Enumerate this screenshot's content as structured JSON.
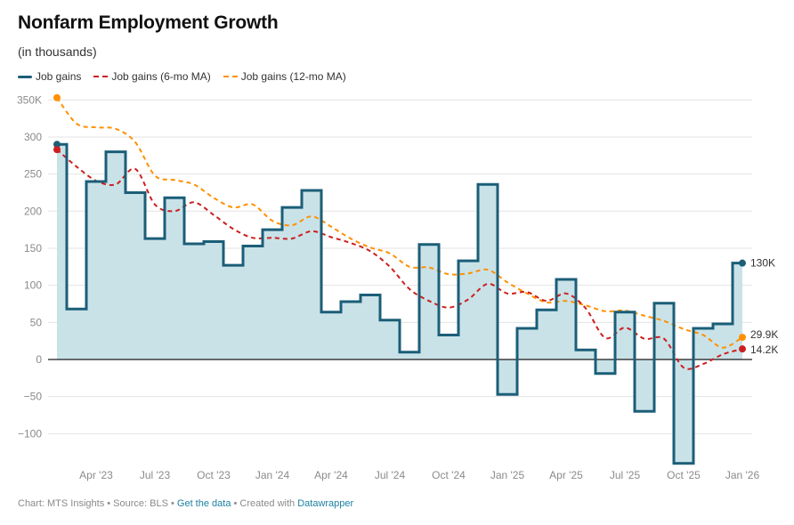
{
  "header": {
    "title": "Nonfarm Employment Growth",
    "subtitle": "(in thousands)"
  },
  "legend": [
    {
      "label": "Job gains",
      "style": "solid",
      "color": "#1b5e78"
    },
    {
      "label": "Job gains (6-mo MA)",
      "style": "dashed",
      "color": "#cc1f1f"
    },
    {
      "label": "Job gains (12-mo MA)",
      "style": "dashed",
      "color": "#ff9000"
    }
  ],
  "footer": {
    "prefix": "Chart: MTS Insights • Source: BLS • ",
    "get_data": "Get the data",
    "middle": " • Created with ",
    "datawrapper": "Datawrapper"
  },
  "chart_data": {
    "type": "line",
    "title": "Nonfarm Employment Growth",
    "subtitle": "(in thousands)",
    "xlabel": "",
    "ylabel": "",
    "ylim": [
      -150,
      350
    ],
    "grid": true,
    "legend_position": "top-left",
    "y_ticks": [
      350,
      300,
      250,
      200,
      150,
      100,
      50,
      0,
      -50,
      -100
    ],
    "y_tick_labels": [
      "350K",
      "300",
      "250",
      "200",
      "150",
      "100",
      "50",
      "0",
      "−50",
      "−100"
    ],
    "x_ticks": [
      {
        "label": "Apr '23",
        "index": 2
      },
      {
        "label": "Jul '23",
        "index": 5
      },
      {
        "label": "Oct '23",
        "index": 8
      },
      {
        "label": "Jan '24",
        "index": 11
      },
      {
        "label": "Apr '24",
        "index": 14
      },
      {
        "label": "Jul '24",
        "index": 17
      },
      {
        "label": "Oct '24",
        "index": 20
      },
      {
        "label": "Jan '25",
        "index": 23
      },
      {
        "label": "Apr '25",
        "index": 26
      },
      {
        "label": "Jul '25",
        "index": 29
      },
      {
        "label": "Oct '25",
        "index": 32
      },
      {
        "label": "Jan '26",
        "index": 35
      }
    ],
    "x": [
      "Feb '23",
      "Mar '23",
      "Apr '23",
      "May '23",
      "Jun '23",
      "Jul '23",
      "Aug '23",
      "Sep '23",
      "Oct '23",
      "Nov '23",
      "Dec '23",
      "Jan '24",
      "Feb '24",
      "Mar '24",
      "Apr '24",
      "May '24",
      "Jun '24",
      "Jul '24",
      "Aug '24",
      "Sep '24",
      "Oct '24",
      "Nov '24",
      "Dec '24",
      "Jan '25",
      "Feb '25",
      "Mar '25",
      "Apr '25",
      "May '25",
      "Jun '25",
      "Jul '25",
      "Aug '25",
      "Sep '25",
      "Oct '25",
      "Nov '25",
      "Dec '25",
      "Jan '26"
    ],
    "series": [
      {
        "name": "Job gains",
        "style": "step",
        "color": "#1b5e78",
        "fill": "#c9e2e8",
        "values": [
          290,
          68,
          240,
          280,
          225,
          163,
          218,
          156,
          159,
          127,
          153,
          175,
          205,
          228,
          64,
          78,
          87,
          53,
          10,
          155,
          33,
          133,
          236,
          -47,
          42,
          67,
          108,
          13,
          -19,
          64,
          -70,
          76,
          -140,
          42,
          48,
          130
        ],
        "end_label": "130K"
      },
      {
        "name": "Job gains (6-mo MA)",
        "style": "dashed",
        "color": "#cc1f1f",
        "values": [
          283,
          260,
          241,
          236,
          257,
          209,
          200,
          212,
          195,
          176,
          164,
          164,
          163,
          173,
          165,
          157,
          146,
          125,
          95,
          79,
          70,
          81,
          102,
          89,
          91,
          79,
          89,
          69,
          29,
          43,
          28,
          28,
          -11,
          -6,
          7,
          14.2
        ],
        "end_label": "14.2K"
      },
      {
        "name": "Job gains (12-mo MA)",
        "style": "dashed",
        "color": "#ff9000",
        "values": [
          353,
          318,
          313,
          311,
          293,
          248,
          242,
          236,
          218,
          205,
          209,
          187,
          181,
          193,
          179,
          163,
          151,
          143,
          125,
          124,
          115,
          116,
          121,
          104,
          89,
          77,
          79,
          73,
          65,
          66,
          59,
          52,
          41,
          33,
          16,
          29.9
        ],
        "end_label": "29.9K"
      }
    ]
  }
}
